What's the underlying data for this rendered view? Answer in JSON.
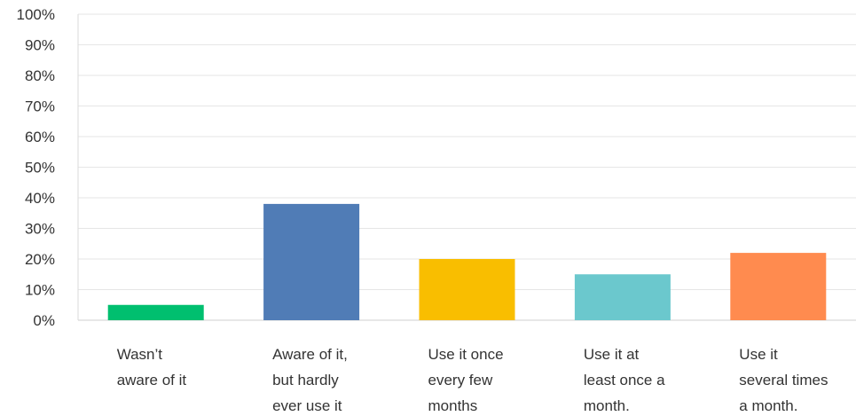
{
  "chart_data": {
    "type": "bar",
    "categories": [
      [
        "Wasn’t",
        "aware of it"
      ],
      [
        "Aware of it,",
        "but hardly",
        "ever use it"
      ],
      [
        "Use it once",
        "every few",
        "months"
      ],
      [
        "Use it at",
        "least once a",
        "month."
      ],
      [
        "Use it",
        "several times",
        "a month."
      ]
    ],
    "values": [
      5,
      38,
      20,
      15,
      22
    ],
    "colors": [
      "#00bf6f",
      "#507cb6",
      "#f9be00",
      "#6bc8cd",
      "#ff8b4f"
    ],
    "y_ticks": [
      "0%",
      "10%",
      "20%",
      "30%",
      "40%",
      "50%",
      "60%",
      "70%",
      "80%",
      "90%",
      "100%"
    ],
    "ylim": [
      0,
      100
    ],
    "grid": true,
    "title": "",
    "xlabel": "",
    "ylabel": ""
  }
}
